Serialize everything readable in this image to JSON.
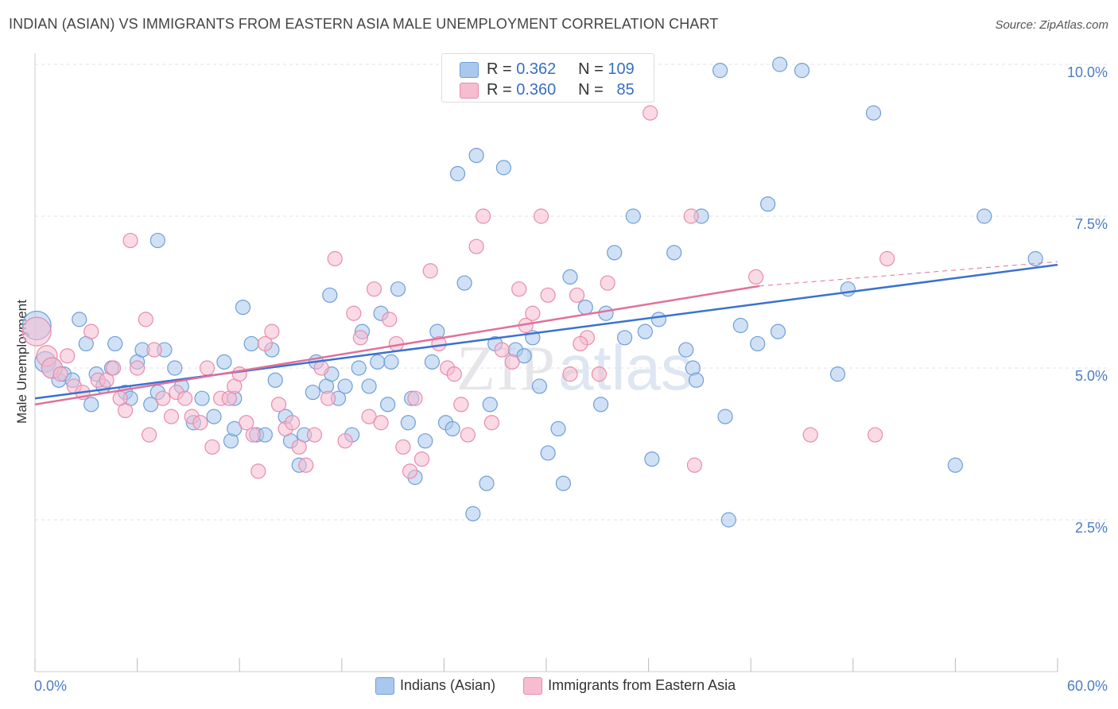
{
  "title": "INDIAN (ASIAN) VS IMMIGRANTS FROM EASTERN ASIA MALE UNEMPLOYMENT CORRELATION CHART",
  "source": "Source: ZipAtlas.com",
  "legend_top": {
    "rows": [
      {
        "r_label": "R =",
        "r_value": "0.362",
        "n_label": "N =",
        "n_value": "109"
      },
      {
        "r_label": "R =",
        "r_value": "0.360",
        "n_label": "N =",
        "n_value": "85"
      }
    ]
  },
  "colors": {
    "blue_fill": "#aac8ee",
    "blue_stroke": "#6f9fd8",
    "blue_line": "#3a72d0",
    "pink_fill": "#f6bcd0",
    "pink_stroke": "#e88cab",
    "pink_line": "#e0719a",
    "axis_text": "#4a7cc9"
  },
  "chart_data": {
    "type": "scatter",
    "title": "INDIAN (ASIAN) VS IMMIGRANTS FROM EASTERN ASIA MALE UNEMPLOYMENT CORRELATION CHART",
    "xlabel": "",
    "ylabel": "Male Unemployment",
    "xlim": [
      0,
      60
    ],
    "ylim": [
      0,
      10.5
    ],
    "x_tick_labels": [
      "0.0%",
      "60.0%"
    ],
    "y_ticks": [
      2.5,
      5.0,
      7.5,
      10.0
    ],
    "y_tick_labels": [
      "2.5%",
      "5.0%",
      "7.5%",
      "10.0%"
    ],
    "grid": true,
    "legend": "bottom",
    "watermark": "ZIPatlas",
    "series": [
      {
        "name": "Indians (Asian)",
        "color": "#aac8ee",
        "r": 0.362,
        "n": 109,
        "trend": {
          "x": [
            0,
            60
          ],
          "y": [
            4.5,
            6.7
          ]
        },
        "points": [
          [
            0.1,
            5.7
          ],
          [
            0.6,
            5.1
          ],
          [
            1.0,
            5.0
          ],
          [
            1.4,
            4.8
          ],
          [
            1.7,
            4.9
          ],
          [
            2.2,
            4.8
          ],
          [
            2.6,
            5.8
          ],
          [
            3.0,
            5.4
          ],
          [
            3.3,
            4.4
          ],
          [
            3.6,
            4.9
          ],
          [
            4.0,
            4.7
          ],
          [
            4.5,
            5.0
          ],
          [
            4.7,
            5.4
          ],
          [
            5.3,
            4.6
          ],
          [
            5.6,
            4.5
          ],
          [
            6.0,
            5.1
          ],
          [
            6.3,
            5.3
          ],
          [
            6.8,
            4.4
          ],
          [
            7.2,
            4.6
          ],
          [
            7.6,
            5.3
          ],
          [
            7.2,
            7.1
          ],
          [
            8.2,
            5.0
          ],
          [
            8.6,
            4.7
          ],
          [
            9.3,
            4.1
          ],
          [
            9.8,
            4.5
          ],
          [
            10.5,
            4.2
          ],
          [
            11.1,
            5.1
          ],
          [
            11.5,
            3.8
          ],
          [
            11.7,
            4.5
          ],
          [
            12.2,
            6.0
          ],
          [
            12.7,
            5.4
          ],
          [
            13.0,
            3.9
          ],
          [
            13.5,
            3.9
          ],
          [
            13.9,
            5.3
          ],
          [
            14.1,
            4.8
          ],
          [
            14.7,
            4.2
          ],
          [
            15.0,
            3.8
          ],
          [
            15.5,
            3.4
          ],
          [
            15.8,
            3.9
          ],
          [
            16.3,
            4.6
          ],
          [
            16.5,
            5.1
          ],
          [
            17.1,
            4.7
          ],
          [
            17.4,
            4.9
          ],
          [
            17.8,
            4.5
          ],
          [
            18.2,
            4.7
          ],
          [
            18.6,
            3.9
          ],
          [
            19.0,
            5.0
          ],
          [
            19.2,
            5.6
          ],
          [
            19.6,
            4.7
          ],
          [
            20.1,
            5.1
          ],
          [
            20.3,
            5.9
          ],
          [
            20.7,
            4.4
          ],
          [
            20.9,
            5.1
          ],
          [
            21.3,
            6.3
          ],
          [
            21.9,
            4.1
          ],
          [
            22.1,
            4.5
          ],
          [
            22.3,
            3.2
          ],
          [
            22.9,
            3.8
          ],
          [
            23.3,
            5.1
          ],
          [
            23.6,
            5.6
          ],
          [
            24.1,
            4.1
          ],
          [
            24.5,
            4.0
          ],
          [
            24.8,
            8.2
          ],
          [
            25.2,
            6.4
          ],
          [
            25.7,
            2.6
          ],
          [
            25.9,
            8.5
          ],
          [
            26.7,
            4.4
          ],
          [
            27.0,
            5.4
          ],
          [
            27.5,
            8.3
          ],
          [
            28.2,
            5.3
          ],
          [
            28.7,
            5.2
          ],
          [
            29.2,
            5.5
          ],
          [
            29.6,
            4.7
          ],
          [
            30.1,
            3.6
          ],
          [
            30.7,
            4.0
          ],
          [
            31.4,
            6.5
          ],
          [
            31.0,
            3.1
          ],
          [
            32.3,
            6.0
          ],
          [
            33.2,
            4.4
          ],
          [
            33.5,
            5.9
          ],
          [
            34.0,
            6.9
          ],
          [
            34.6,
            5.5
          ],
          [
            35.1,
            7.5
          ],
          [
            35.8,
            5.6
          ],
          [
            36.2,
            3.5
          ],
          [
            36.6,
            5.8
          ],
          [
            37.5,
            6.9
          ],
          [
            38.2,
            5.3
          ],
          [
            38.6,
            5.0
          ],
          [
            38.8,
            4.8
          ],
          [
            39.1,
            7.5
          ],
          [
            40.2,
            9.9
          ],
          [
            40.5,
            4.2
          ],
          [
            40.7,
            2.5
          ],
          [
            41.4,
            5.7
          ],
          [
            42.4,
            5.4
          ],
          [
            43.0,
            7.7
          ],
          [
            43.6,
            5.6
          ],
          [
            43.7,
            10.0
          ],
          [
            45.0,
            9.9
          ],
          [
            47.1,
            4.9
          ],
          [
            47.7,
            6.3
          ],
          [
            49.2,
            9.2
          ],
          [
            54.0,
            3.4
          ],
          [
            55.7,
            7.5
          ],
          [
            58.7,
            6.8
          ],
          [
            17.3,
            6.2
          ],
          [
            11.7,
            4.0
          ],
          [
            26.5,
            3.1
          ]
        ]
      },
      {
        "name": "Immigrants from Eastern Asia",
        "color": "#f6bcd0",
        "r": 0.36,
        "n": 85,
        "trend": {
          "x": [
            0,
            42.5
          ],
          "y": [
            4.4,
            6.35
          ]
        },
        "trend_extension": {
          "x": [
            42.5,
            60
          ],
          "y": [
            6.35,
            6.75
          ]
        },
        "points": [
          [
            0.1,
            5.6
          ],
          [
            0.7,
            5.2
          ],
          [
            1.0,
            5.0
          ],
          [
            1.5,
            4.9
          ],
          [
            1.9,
            5.2
          ],
          [
            2.3,
            4.7
          ],
          [
            2.8,
            4.6
          ],
          [
            3.3,
            5.6
          ],
          [
            3.7,
            4.8
          ],
          [
            4.2,
            4.8
          ],
          [
            4.6,
            5.0
          ],
          [
            5.0,
            4.5
          ],
          [
            5.3,
            4.3
          ],
          [
            5.6,
            7.1
          ],
          [
            6.0,
            5.0
          ],
          [
            6.5,
            5.8
          ],
          [
            6.7,
            3.9
          ],
          [
            7.0,
            5.3
          ],
          [
            7.5,
            4.5
          ],
          [
            8.0,
            4.2
          ],
          [
            8.3,
            4.6
          ],
          [
            8.8,
            4.5
          ],
          [
            9.2,
            4.2
          ],
          [
            9.7,
            4.1
          ],
          [
            10.1,
            5.0
          ],
          [
            10.4,
            3.7
          ],
          [
            10.9,
            4.5
          ],
          [
            11.4,
            4.5
          ],
          [
            11.7,
            4.7
          ],
          [
            12.0,
            4.9
          ],
          [
            12.4,
            4.1
          ],
          [
            12.8,
            3.9
          ],
          [
            13.1,
            3.3
          ],
          [
            13.5,
            5.4
          ],
          [
            13.9,
            5.6
          ],
          [
            14.3,
            4.4
          ],
          [
            14.7,
            4.0
          ],
          [
            15.1,
            4.1
          ],
          [
            15.5,
            3.7
          ],
          [
            15.9,
            3.4
          ],
          [
            16.4,
            3.9
          ],
          [
            16.8,
            5.0
          ],
          [
            17.2,
            4.5
          ],
          [
            17.6,
            6.8
          ],
          [
            18.2,
            3.8
          ],
          [
            18.7,
            5.9
          ],
          [
            19.1,
            5.5
          ],
          [
            19.6,
            4.2
          ],
          [
            19.9,
            6.3
          ],
          [
            20.3,
            4.1
          ],
          [
            20.8,
            5.8
          ],
          [
            21.2,
            5.4
          ],
          [
            21.6,
            3.7
          ],
          [
            22.0,
            3.3
          ],
          [
            22.3,
            4.5
          ],
          [
            22.7,
            3.5
          ],
          [
            23.2,
            6.6
          ],
          [
            23.7,
            5.4
          ],
          [
            24.2,
            5.0
          ],
          [
            24.6,
            4.9
          ],
          [
            25.0,
            4.4
          ],
          [
            25.4,
            3.9
          ],
          [
            25.9,
            7.0
          ],
          [
            26.3,
            7.5
          ],
          [
            26.8,
            4.1
          ],
          [
            27.4,
            5.3
          ],
          [
            28.0,
            5.1
          ],
          [
            28.4,
            6.3
          ],
          [
            28.8,
            5.7
          ],
          [
            29.2,
            5.9
          ],
          [
            29.7,
            7.5
          ],
          [
            30.1,
            6.2
          ],
          [
            31.4,
            4.9
          ],
          [
            31.8,
            6.2
          ],
          [
            32.4,
            5.5
          ],
          [
            33.1,
            4.9
          ],
          [
            33.6,
            6.4
          ],
          [
            36.1,
            9.2
          ],
          [
            38.5,
            7.5
          ],
          [
            38.7,
            3.4
          ],
          [
            42.3,
            6.5
          ],
          [
            45.5,
            3.9
          ],
          [
            49.3,
            3.9
          ],
          [
            50.0,
            6.8
          ],
          [
            32.0,
            5.4
          ]
        ]
      }
    ]
  },
  "bottom_legend": [
    "Indians (Asian)",
    "Immigrants from Eastern Asia"
  ]
}
